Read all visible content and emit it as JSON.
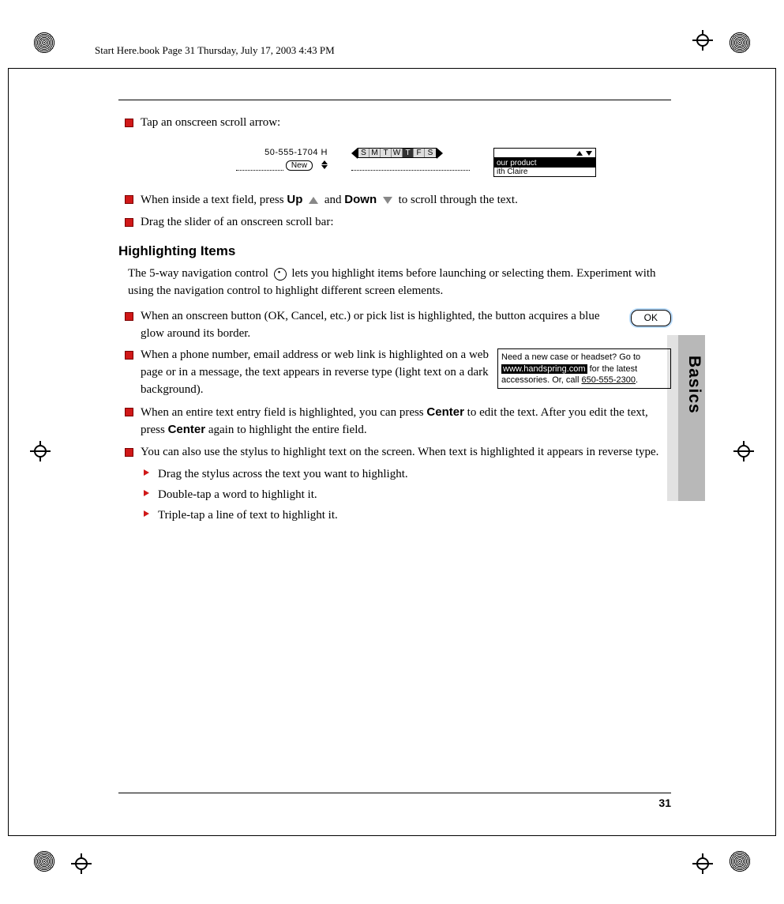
{
  "header": "Start Here.book  Page 31  Thursday, July 17, 2003  4:43 PM",
  "page_number": "31",
  "section_tab": "Basics",
  "bullets_top": {
    "b1": "Tap an onscreen scroll arrow:",
    "b2_pre": "When inside a text field, press ",
    "b2_up": "Up",
    "b2_mid": " and ",
    "b2_down": "Down",
    "b2_post": " to scroll through the text.",
    "b3": "Drag the slider of an onscreen scroll bar:"
  },
  "screenshots": {
    "phone": "50-555-1704 H",
    "new_btn": "New",
    "days": [
      "S",
      "M",
      "T",
      "W",
      "T",
      "F",
      "S"
    ],
    "selected_day_index": 4,
    "list_row1": "our product",
    "list_row2": "ith Claire"
  },
  "heading": "Highlighting Items",
  "intro": "The 5-way navigation control lets you highlight items before launching or selecting them. Experiment with using the navigation control to highlight different screen elements.",
  "ok_label": "OK",
  "msgbox": {
    "pre": "Need a new case or headset? Go to ",
    "link": "www.handspring.com",
    "mid": " for the latest accessories. Or, call ",
    "phone": "650-555-2300",
    "post": "."
  },
  "hl_bullets": {
    "b1": "When an onscreen button (OK, Cancel, etc.) or pick list is highlighted, the button acquires a blue glow around its border.",
    "b2": "When a phone number, email address or web link is highlighted on a web page or in a message, the text appears in reverse type (light text on a dark background).",
    "b3_pre": "When an entire text entry field is highlighted, you can press ",
    "b3_c1": "Center",
    "b3_mid": " to edit the text. After you edit the text, press ",
    "b3_c2": "Center",
    "b3_post": " again to highlight the entire field.",
    "b4": "You can also use the stylus to highlight text on the screen. When text is highlighted it appears in reverse type."
  },
  "sub_bullets": {
    "s1": "Drag the stylus across the text you want to highlight.",
    "s2": "Double-tap a word to highlight it.",
    "s3": "Triple-tap a line of text to highlight it."
  },
  "colors": {
    "bullet": "#d01818",
    "tab_bg": "#b8b8b8",
    "tab_ext": "#e2e2e2"
  }
}
